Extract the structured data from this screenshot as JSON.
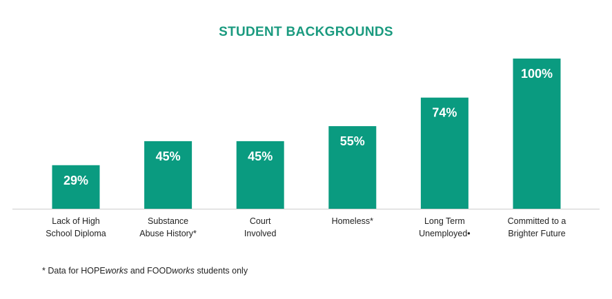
{
  "colors": {
    "bar": "#0a9b80",
    "title": "#1a9a7f",
    "axis": "#cccccc",
    "value_label": "#ffffff",
    "text": "#222222"
  },
  "chart_data": {
    "type": "bar",
    "title": "STUDENT BACKGROUNDS",
    "xlabel": "",
    "ylabel": "",
    "ylim": [
      0,
      100
    ],
    "grid": false,
    "categories": [
      [
        "Lack of High",
        "School Diploma"
      ],
      [
        "Substance",
        "Abuse History*"
      ],
      [
        "Court",
        "Involved"
      ],
      [
        "Homeless*"
      ],
      [
        "Long Term",
        "Unemployed•"
      ],
      [
        "Committed to a",
        "Brighter Future"
      ]
    ],
    "values": [
      29,
      45,
      45,
      55,
      74,
      100
    ],
    "value_labels": [
      "29%",
      "45%",
      "45%",
      "55%",
      "74%",
      "100%"
    ]
  },
  "footnote": {
    "prefix": "* Data for HOPE",
    "hope_italic": "works",
    "middle": " and FOOD",
    "food_italic": "works",
    "suffix": " students only"
  }
}
